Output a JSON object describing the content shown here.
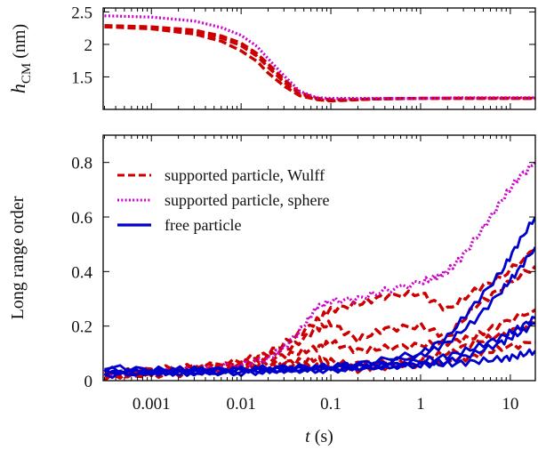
{
  "chart_data": [
    {
      "id": "top",
      "type": "line",
      "title": "",
      "xlabel": "",
      "ylabel": "h_CM (nm)",
      "ylabel_main": "h",
      "ylabel_sub": "CM",
      "ylabel_unit": " (nm)",
      "xscale": "log",
      "xlim": [
        0.00029,
        19
      ],
      "ylim": [
        1.0,
        2.56
      ],
      "yticks": [
        1.5,
        2,
        2.5
      ],
      "ytick_labels": [
        "1.5",
        "2",
        "2.5"
      ],
      "xticks": [
        0.001,
        0.01,
        0.1,
        1,
        10
      ],
      "xtick_labels": [
        "",
        "",
        "",
        "",
        ""
      ],
      "grid": false,
      "series": [
        {
          "name": "supported particle, Wulff",
          "style": "dashed",
          "color": "#cc0000",
          "x": [
            0.0003,
            0.001,
            0.003,
            0.006,
            0.01,
            0.015,
            0.02,
            0.03,
            0.045,
            0.07,
            0.1,
            0.15,
            0.3,
            1,
            3,
            10,
            19
          ],
          "y": [
            2.28,
            2.26,
            2.2,
            2.1,
            1.98,
            1.82,
            1.65,
            1.42,
            1.24,
            1.16,
            1.14,
            1.15,
            1.16,
            1.17,
            1.17,
            1.17,
            1.17
          ]
        },
        {
          "name": "supported particle, Wulff",
          "style": "dashed",
          "color": "#cc0000",
          "x": [
            0.0003,
            0.001,
            0.003,
            0.006,
            0.01,
            0.015,
            0.02,
            0.03,
            0.045,
            0.07,
            0.1,
            0.15,
            0.3,
            1,
            3,
            10,
            19
          ],
          "y": [
            2.27,
            2.24,
            2.16,
            2.05,
            1.9,
            1.74,
            1.56,
            1.36,
            1.21,
            1.15,
            1.13,
            1.14,
            1.16,
            1.17,
            1.17,
            1.17,
            1.17
          ]
        },
        {
          "name": "supported particle, Wulff",
          "style": "dashed",
          "color": "#cc0000",
          "x": [
            0.0003,
            0.001,
            0.003,
            0.006,
            0.01,
            0.015,
            0.02,
            0.03,
            0.045,
            0.07,
            0.1,
            0.15,
            0.3,
            1,
            3,
            10,
            19
          ],
          "y": [
            2.29,
            2.27,
            2.22,
            2.13,
            2.02,
            1.86,
            1.7,
            1.46,
            1.26,
            1.17,
            1.15,
            1.15,
            1.16,
            1.17,
            1.17,
            1.17,
            1.17
          ]
        },
        {
          "name": "supported particle, sphere",
          "style": "dotted",
          "color": "#cc00cc",
          "x": [
            0.0003,
            0.001,
            0.003,
            0.006,
            0.01,
            0.015,
            0.02,
            0.03,
            0.045,
            0.07,
            0.1,
            0.15,
            0.3,
            1,
            3,
            10,
            19
          ],
          "y": [
            2.44,
            2.42,
            2.36,
            2.26,
            2.14,
            1.97,
            1.78,
            1.52,
            1.28,
            1.18,
            1.17,
            1.17,
            1.17,
            1.17,
            1.18,
            1.18,
            1.18
          ]
        }
      ]
    },
    {
      "id": "bottom",
      "type": "line",
      "title": "",
      "xlabel": "t (s)",
      "xlabel_var": "t",
      "xlabel_unit": " (s)",
      "ylabel": "Long range order",
      "xscale": "log",
      "xlim": [
        0.00029,
        19
      ],
      "ylim": [
        0,
        0.9
      ],
      "yticks": [
        0,
        0.2,
        0.4,
        0.6,
        0.8
      ],
      "ytick_labels": [
        "0",
        "0.2",
        "0.4",
        "0.6",
        "0.8"
      ],
      "xticks": [
        0.001,
        0.01,
        0.1,
        1,
        10
      ],
      "xtick_labels": [
        "0.001",
        "0.01",
        "0.1",
        "1",
        "10"
      ],
      "grid": false,
      "legend": {
        "placement": "top-left",
        "entries": [
          {
            "label": "supported particle, Wulff",
            "style": "dashed",
            "color": "#cc0000"
          },
          {
            "label": "supported particle, sphere",
            "style": "dotted",
            "color": "#cc00cc"
          },
          {
            "label": "free particle",
            "style": "solid",
            "color": "#0000cc"
          }
        ]
      },
      "series": [
        {
          "name": "supported particle, Wulff",
          "style": "dashed",
          "color": "#cc0000",
          "x": [
            0.0003,
            0.001,
            0.003,
            0.01,
            0.02,
            0.04,
            0.07,
            0.1,
            0.2,
            0.4,
            1,
            2,
            4,
            8,
            19
          ],
          "y": [
            0.02,
            0.03,
            0.05,
            0.07,
            0.1,
            0.16,
            0.22,
            0.26,
            0.28,
            0.31,
            0.32,
            0.26,
            0.33,
            0.38,
            0.48
          ]
        },
        {
          "name": "supported particle, Wulff",
          "style": "dashed",
          "color": "#cc0000",
          "x": [
            0.0003,
            0.001,
            0.003,
            0.01,
            0.02,
            0.04,
            0.07,
            0.1,
            0.2,
            0.4,
            1,
            2,
            4,
            8,
            19
          ],
          "y": [
            0.03,
            0.04,
            0.05,
            0.06,
            0.09,
            0.13,
            0.19,
            0.21,
            0.15,
            0.19,
            0.2,
            0.16,
            0.27,
            0.34,
            0.42
          ]
        },
        {
          "name": "supported particle, Wulff",
          "style": "dashed",
          "color": "#cc0000",
          "x": [
            0.0003,
            0.001,
            0.003,
            0.01,
            0.02,
            0.04,
            0.07,
            0.1,
            0.2,
            0.4,
            1,
            2,
            4,
            8,
            19
          ],
          "y": [
            0.02,
            0.03,
            0.04,
            0.06,
            0.08,
            0.1,
            0.12,
            0.14,
            0.11,
            0.12,
            0.13,
            0.14,
            0.16,
            0.21,
            0.26
          ]
        },
        {
          "name": "supported particle, Wulff",
          "style": "dashed",
          "color": "#cc0000",
          "x": [
            0.0003,
            0.001,
            0.003,
            0.01,
            0.02,
            0.04,
            0.07,
            0.1,
            0.2,
            0.4,
            1,
            2,
            4,
            8,
            19
          ],
          "y": [
            0.01,
            0.03,
            0.04,
            0.05,
            0.06,
            0.07,
            0.08,
            0.07,
            0.06,
            0.07,
            0.08,
            0.1,
            0.14,
            0.17,
            0.21
          ]
        },
        {
          "name": "supported particle, Wulff",
          "style": "dashed",
          "color": "#cc0000",
          "x": [
            0.0003,
            0.001,
            0.003,
            0.01,
            0.02,
            0.04,
            0.07,
            0.1,
            0.2,
            0.4,
            1,
            2,
            4,
            8,
            19
          ],
          "y": [
            0.02,
            0.02,
            0.03,
            0.05,
            0.05,
            0.06,
            0.05,
            0.05,
            0.04,
            0.05,
            0.06,
            0.07,
            0.09,
            0.12,
            0.14
          ]
        },
        {
          "name": "supported particle, sphere",
          "style": "dotted",
          "color": "#cc00cc",
          "x": [
            0.0003,
            0.001,
            0.003,
            0.01,
            0.02,
            0.03,
            0.05,
            0.07,
            0.1,
            0.2,
            0.4,
            1,
            1.5,
            2,
            3,
            5,
            8,
            12,
            19
          ],
          "y": [
            0.03,
            0.03,
            0.04,
            0.06,
            0.08,
            0.12,
            0.2,
            0.27,
            0.29,
            0.3,
            0.33,
            0.36,
            0.38,
            0.4,
            0.46,
            0.56,
            0.66,
            0.74,
            0.8
          ]
        },
        {
          "name": "free particle",
          "style": "solid",
          "color": "#0000cc",
          "x": [
            0.0003,
            0.001,
            0.003,
            0.01,
            0.03,
            0.1,
            0.3,
            1,
            2,
            4,
            8,
            12,
            19
          ],
          "y": [
            0.05,
            0.04,
            0.04,
            0.04,
            0.05,
            0.05,
            0.07,
            0.1,
            0.16,
            0.28,
            0.4,
            0.5,
            0.6
          ]
        },
        {
          "name": "free particle",
          "style": "solid",
          "color": "#0000cc",
          "x": [
            0.0003,
            0.001,
            0.003,
            0.01,
            0.03,
            0.1,
            0.3,
            1,
            2,
            4,
            8,
            12,
            19
          ],
          "y": [
            0.04,
            0.03,
            0.04,
            0.04,
            0.04,
            0.05,
            0.06,
            0.09,
            0.14,
            0.22,
            0.33,
            0.4,
            0.49
          ]
        },
        {
          "name": "free particle",
          "style": "solid",
          "color": "#0000cc",
          "x": [
            0.0003,
            0.001,
            0.003,
            0.01,
            0.03,
            0.1,
            0.3,
            1,
            2,
            4,
            8,
            12,
            19
          ],
          "y": [
            0.03,
            0.03,
            0.03,
            0.03,
            0.04,
            0.04,
            0.05,
            0.07,
            0.09,
            0.12,
            0.16,
            0.19,
            0.23
          ]
        },
        {
          "name": "free particle",
          "style": "solid",
          "color": "#0000cc",
          "x": [
            0.0003,
            0.001,
            0.003,
            0.01,
            0.03,
            0.1,
            0.3,
            1,
            2,
            4,
            8,
            12,
            19
          ],
          "y": [
            0.02,
            0.03,
            0.03,
            0.03,
            0.04,
            0.04,
            0.05,
            0.06,
            0.07,
            0.1,
            0.14,
            0.17,
            0.21
          ]
        },
        {
          "name": "free particle",
          "style": "solid",
          "color": "#0000cc",
          "x": [
            0.0003,
            0.001,
            0.003,
            0.01,
            0.03,
            0.1,
            0.3,
            1,
            2,
            4,
            8,
            12,
            19
          ],
          "y": [
            0.03,
            0.03,
            0.03,
            0.04,
            0.04,
            0.05,
            0.05,
            0.06,
            0.06,
            0.07,
            0.08,
            0.09,
            0.11
          ]
        }
      ]
    }
  ]
}
